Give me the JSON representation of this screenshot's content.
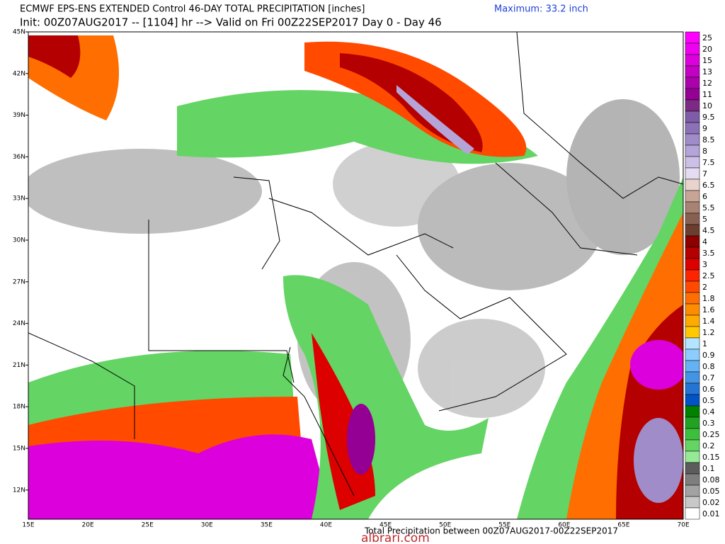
{
  "header": {
    "line1": "ECMWF EPS-ENS EXTENDED Control 46-DAY TOTAL PRECIPITATION [inches]",
    "maximum": "Maximum: 33.2 inch",
    "line2": "Init: 00Z07AUG2017 -- [1104] hr --> Valid on Fri 00Z22SEP2017  Day 0 - Day 46"
  },
  "map": {
    "lat_labels": [
      "45N",
      "42N",
      "39N",
      "36N",
      "33N",
      "30N",
      "27N",
      "24N",
      "21N",
      "18N",
      "15N",
      "12N"
    ],
    "lon_labels": [
      "15E",
      "20E",
      "25E",
      "30E",
      "35E",
      "40E",
      "45E",
      "50E",
      "55E",
      "60E",
      "65E",
      "70E"
    ]
  },
  "colorbar": {
    "levels": [
      {
        "label": "25",
        "color": "#ff00ff"
      },
      {
        "label": "20",
        "color": "#f000f0"
      },
      {
        "label": "15",
        "color": "#dc00dc"
      },
      {
        "label": "13",
        "color": "#c400c4"
      },
      {
        "label": "12",
        "color": "#ac00ac"
      },
      {
        "label": "11",
        "color": "#940094"
      },
      {
        "label": "10",
        "color": "#7c2a84"
      },
      {
        "label": "9.5",
        "color": "#7e5ca8"
      },
      {
        "label": "9",
        "color": "#8c70b8"
      },
      {
        "label": "8.5",
        "color": "#a08cc8"
      },
      {
        "label": "8",
        "color": "#b4a4d8"
      },
      {
        "label": "7.5",
        "color": "#ccc0e6"
      },
      {
        "label": "7",
        "color": "#e4dcf2"
      },
      {
        "label": "6.5",
        "color": "#e8d4cc"
      },
      {
        "label": "6",
        "color": "#c8a496"
      },
      {
        "label": "5.5",
        "color": "#a88272"
      },
      {
        "label": "5",
        "color": "#886052"
      },
      {
        "label": "4.5",
        "color": "#6c3e30"
      },
      {
        "label": "4",
        "color": "#8c0000"
      },
      {
        "label": "3.5",
        "color": "#b40000"
      },
      {
        "label": "3",
        "color": "#dc0000"
      },
      {
        "label": "2.5",
        "color": "#ff2400"
      },
      {
        "label": "2",
        "color": "#ff4a00"
      },
      {
        "label": "1.8",
        "color": "#ff6e00"
      },
      {
        "label": "1.6",
        "color": "#ff8c00"
      },
      {
        "label": "1.4",
        "color": "#ffaa00"
      },
      {
        "label": "1.2",
        "color": "#ffc800"
      },
      {
        "label": "1",
        "color": "#b4e4ff"
      },
      {
        "label": "0.9",
        "color": "#8cccff"
      },
      {
        "label": "0.8",
        "color": "#64b2f4"
      },
      {
        "label": "0.7",
        "color": "#4494e4"
      },
      {
        "label": "0.6",
        "color": "#2474d4"
      },
      {
        "label": "0.5",
        "color": "#0054c4"
      },
      {
        "label": "0.4",
        "color": "#008200"
      },
      {
        "label": "0.3",
        "color": "#22a222"
      },
      {
        "label": "0.25",
        "color": "#3cc03c"
      },
      {
        "label": "0.2",
        "color": "#64d464"
      },
      {
        "label": "0.15",
        "color": "#96ea96"
      },
      {
        "label": "0.1",
        "color": "#5c5c5c"
      },
      {
        "label": "0.08",
        "color": "#7e7e7e"
      },
      {
        "label": "0.05",
        "color": "#a2a2a2"
      },
      {
        "label": "0.02",
        "color": "#c8c8c8"
      },
      {
        "label": "0.01",
        "color": "#ffffff"
      }
    ]
  },
  "footer": {
    "caption": "Total Precipitation between 00Z07AUG2017-00Z22SEP2017",
    "watermark": "albrari.com"
  }
}
